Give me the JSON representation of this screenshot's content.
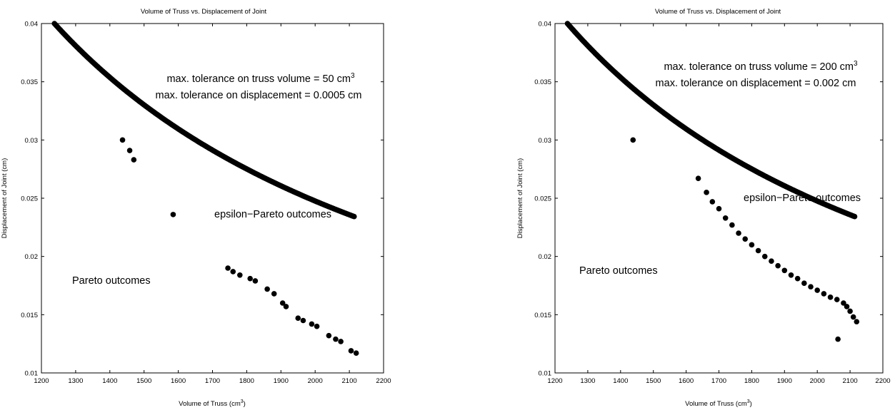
{
  "chart_data": [
    {
      "type": "scatter",
      "title": "Volume of Truss vs. Displacement of Joint",
      "xlabel": "Volume of Truss (cm",
      "xlabel_sup": "3",
      "xlabel_end": ")",
      "ylabel": "Displacement of Joint (cm)",
      "xlim": [
        1200,
        2200
      ],
      "ylim": [
        0.01,
        0.04
      ],
      "xticks": [
        "1200",
        "1300",
        "1400",
        "1500",
        "1600",
        "1700",
        "1800",
        "1900",
        "2000",
        "2100",
        "2200"
      ],
      "yticks": [
        "0.01",
        "0.015",
        "0.02",
        "0.025",
        "0.03",
        "0.035",
        "0.04"
      ],
      "annotations": {
        "tol_volume": "max. tolerance on truss volume = 50 cm",
        "tol_volume_sup": "3",
        "tol_displacement": "max. tolerance on displacement = 0.0005 cm",
        "epsilon_label": "epsilon−Pareto outcomes",
        "pareto_label": "Pareto outcomes"
      },
      "pareto_front": {
        "x_start": 1238,
        "x_end": 2115
      },
      "epsilon_points": [
        [
          1437,
          0.03
        ],
        [
          1458,
          0.0291
        ],
        [
          1470,
          0.0283
        ],
        [
          1585,
          0.0236
        ],
        [
          1745,
          0.019
        ],
        [
          1760,
          0.0187
        ],
        [
          1780,
          0.0184
        ],
        [
          1810,
          0.0181
        ],
        [
          1825,
          0.0179
        ],
        [
          1860,
          0.0172
        ],
        [
          1880,
          0.0168
        ],
        [
          1905,
          0.016
        ],
        [
          1915,
          0.0157
        ],
        [
          1950,
          0.0147
        ],
        [
          1965,
          0.0145
        ],
        [
          1990,
          0.0142
        ],
        [
          2005,
          0.014
        ],
        [
          2040,
          0.0132
        ],
        [
          2060,
          0.0129
        ],
        [
          2075,
          0.0127
        ],
        [
          2105,
          0.0119
        ],
        [
          2120,
          0.0117
        ]
      ]
    },
    {
      "type": "scatter",
      "title": "Volume of Truss vs. Displacement of Joint",
      "xlabel": "Volume of Truss (cm",
      "xlabel_sup": "3",
      "xlabel_end": ")",
      "ylabel": "Displacement of Joint (cm)",
      "xlim": [
        1200,
        2200
      ],
      "ylim": [
        0.01,
        0.04
      ],
      "xticks": [
        "1200",
        "1300",
        "1400",
        "1500",
        "1600",
        "1700",
        "1800",
        "1900",
        "2000",
        "2100",
        "2200"
      ],
      "yticks": [
        "0.01",
        "0.015",
        "0.02",
        "0.025",
        "0.03",
        "0.035",
        "0.04"
      ],
      "annotations": {
        "tol_volume": "max. tolerance on truss volume = 200 cm",
        "tol_volume_sup": "3",
        "tol_displacement": "max. tolerance on displacement = 0.002 cm",
        "epsilon_label": "epsilon−Pareto outcomes",
        "pareto_label": "Pareto outcomes"
      },
      "pareto_front": {
        "x_start": 1238,
        "x_end": 2115
      },
      "epsilon_points": [
        [
          1438,
          0.03
        ],
        [
          1637,
          0.0267
        ],
        [
          1662,
          0.0255
        ],
        [
          1680,
          0.0247
        ],
        [
          1700,
          0.0241
        ],
        [
          1720,
          0.0233
        ],
        [
          1740,
          0.0227
        ],
        [
          1760,
          0.022
        ],
        [
          1780,
          0.0215
        ],
        [
          1800,
          0.021
        ],
        [
          1820,
          0.0205
        ],
        [
          1840,
          0.02
        ],
        [
          1860,
          0.0196
        ],
        [
          1880,
          0.0192
        ],
        [
          1900,
          0.0188
        ],
        [
          1920,
          0.0184
        ],
        [
          1940,
          0.0181
        ],
        [
          1960,
          0.0177
        ],
        [
          1980,
          0.0174
        ],
        [
          2000,
          0.0171
        ],
        [
          2020,
          0.0168
        ],
        [
          2040,
          0.0165
        ],
        [
          2060,
          0.0163
        ],
        [
          2080,
          0.016
        ],
        [
          2090,
          0.0157
        ],
        [
          2100,
          0.0153
        ],
        [
          2110,
          0.0148
        ],
        [
          2120,
          0.0144
        ],
        [
          2063,
          0.0129
        ]
      ]
    }
  ]
}
